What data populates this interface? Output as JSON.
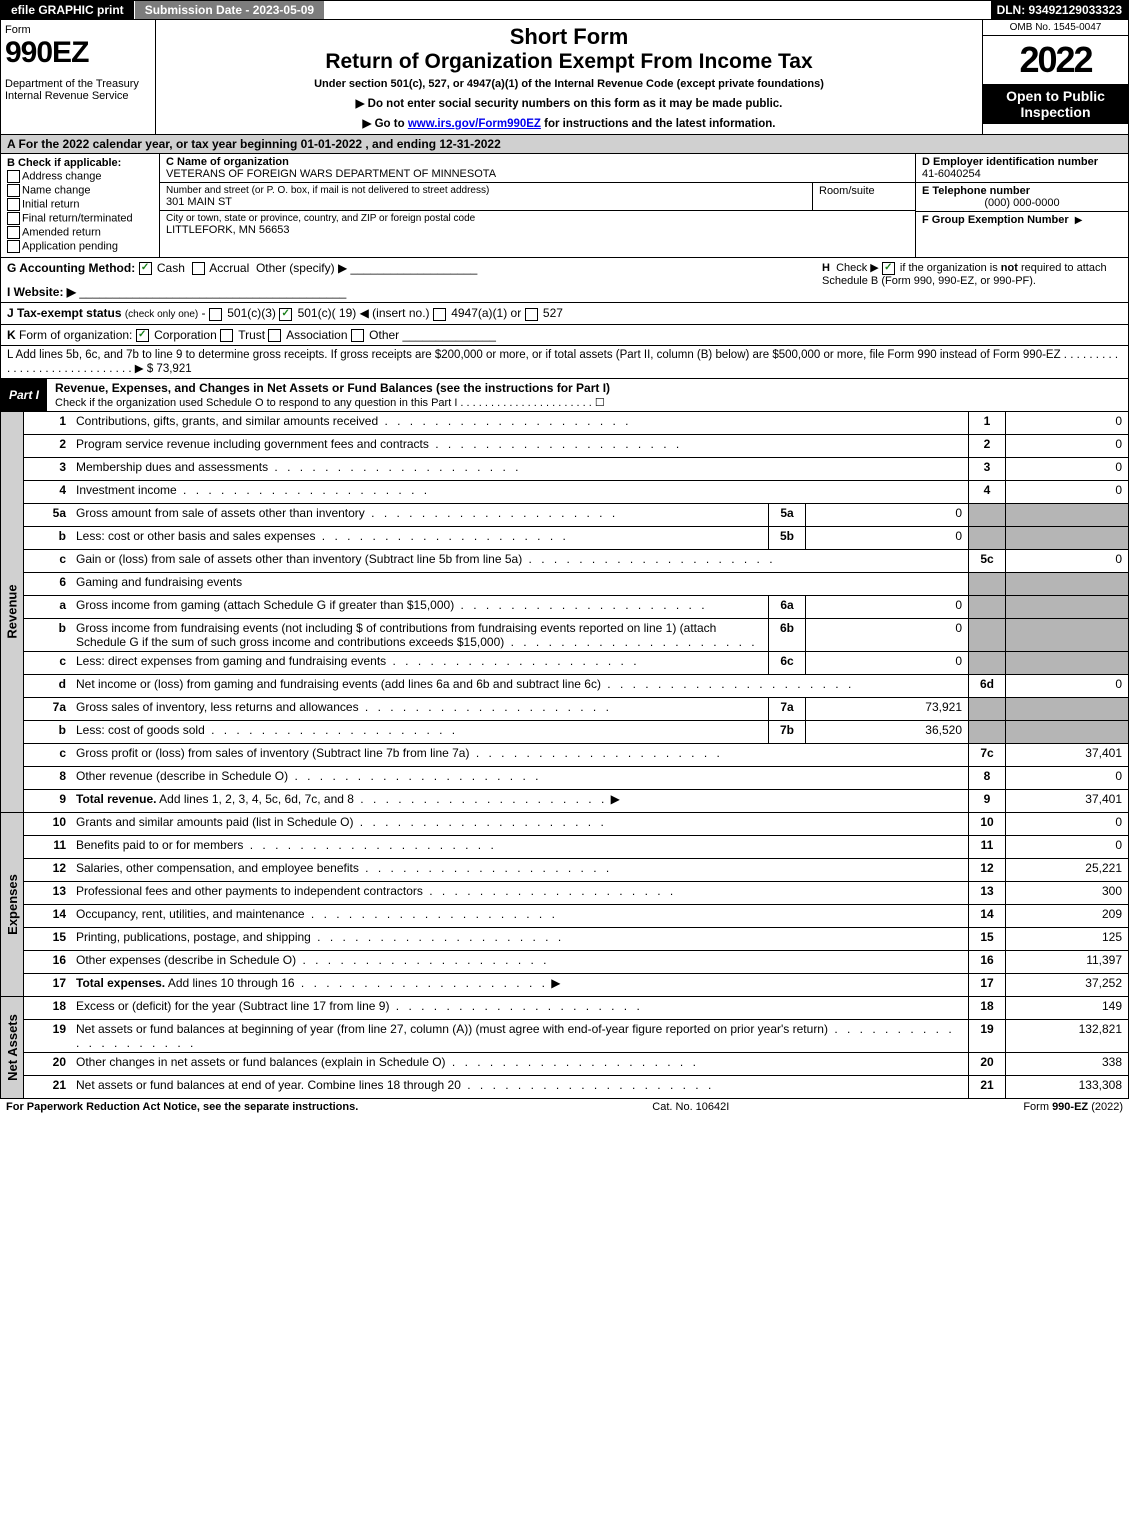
{
  "topbar": {
    "efile": "efile GRAPHIC print",
    "submission": "Submission Date - 2023-05-09",
    "dln": "DLN: 93492129033323"
  },
  "header": {
    "form_word": "Form",
    "form_num": "990EZ",
    "dept": "Department of the Treasury\nInternal Revenue Service",
    "short_form": "Short Form",
    "title": "Return of Organization Exempt From Income Tax",
    "subtitle": "Under section 501(c), 527, or 4947(a)(1) of the Internal Revenue Code (except private foundations)",
    "note1": "Do not enter social security numbers on this form as it may be made public.",
    "note2": "Go to www.irs.gov/Form990EZ for instructions and the latest information.",
    "omb": "OMB No. 1545-0047",
    "year": "2022",
    "open": "Open to Public Inspection"
  },
  "rowA": "A  For the 2022 calendar year, or tax year beginning 01-01-2022 , and ending 12-31-2022",
  "boxB": {
    "title": "B  Check if applicable:",
    "items": [
      "Address change",
      "Name change",
      "Initial return",
      "Final return/terminated",
      "Amended return",
      "Application pending"
    ]
  },
  "boxC": {
    "label_name": "C Name of organization",
    "name": "VETERANS OF FOREIGN WARS DEPARTMENT OF MINNESOTA",
    "label_street": "Number and street (or P. O. box, if mail is not delivered to street address)",
    "room": "Room/suite",
    "street": "301 MAIN ST",
    "label_city": "City or town, state or province, country, and ZIP or foreign postal code",
    "city": "LITTLEFORK, MN  56653"
  },
  "boxD": {
    "label": "D Employer identification number",
    "ein": "41-6040254",
    "label_e": "E Telephone number",
    "phone": "(000) 000-0000",
    "label_f": "F Group Exemption Number"
  },
  "rowG": {
    "label": "G Accounting Method:",
    "cash": "Cash",
    "accrual": "Accrual",
    "other": "Other (specify)"
  },
  "rowH": "H  Check ▶  if the organization is not required to attach Schedule B (Form 990, 990-EZ, or 990-PF).",
  "rowI": "I Website: ▶",
  "rowJ": "J Tax-exempt status (check only one) -  501(c)(3)  501(c)( 19) ◀ (insert no.)  4947(a)(1) or  527",
  "rowK": "K Form of organization:  Corporation  Trust  Association  Other",
  "rowL": "L Add lines 5b, 6c, and 7b to line 9 to determine gross receipts. If gross receipts are $200,000 or more, or if total assets (Part II, column (B) below) are $500,000 or more, file Form 990 instead of Form 990-EZ . . . . . . . . . . . . . . . . . . . . . . . . . . . . . ▶ $ 73,921",
  "part1": {
    "tag": "Part I",
    "title": "Revenue, Expenses, and Changes in Net Assets or Fund Balances (see the instructions for Part I)",
    "check": "Check if the organization used Schedule O to respond to any question in this Part I . . . . . . . . . . . . . . . . . . . . . . ☐"
  },
  "sidelabels": {
    "revenue": "Revenue",
    "expenses": "Expenses",
    "netassets": "Net Assets"
  },
  "lines": {
    "l1": {
      "n": "1",
      "d": "Contributions, gifts, grants, and similar amounts received",
      "rn": "1",
      "rv": "0"
    },
    "l2": {
      "n": "2",
      "d": "Program service revenue including government fees and contracts",
      "rn": "2",
      "rv": "0"
    },
    "l3": {
      "n": "3",
      "d": "Membership dues and assessments",
      "rn": "3",
      "rv": "0"
    },
    "l4": {
      "n": "4",
      "d": "Investment income",
      "rn": "4",
      "rv": "0"
    },
    "l5a": {
      "n": "5a",
      "d": "Gross amount from sale of assets other than inventory",
      "sn": "5a",
      "sv": "0"
    },
    "l5b": {
      "n": "b",
      "d": "Less: cost or other basis and sales expenses",
      "sn": "5b",
      "sv": "0"
    },
    "l5c": {
      "n": "c",
      "d": "Gain or (loss) from sale of assets other than inventory (Subtract line 5b from line 5a)",
      "rn": "5c",
      "rv": "0"
    },
    "l6": {
      "n": "6",
      "d": "Gaming and fundraising events"
    },
    "l6a": {
      "n": "a",
      "d": "Gross income from gaming (attach Schedule G if greater than $15,000)",
      "sn": "6a",
      "sv": "0"
    },
    "l6b": {
      "n": "b",
      "d": "Gross income from fundraising events (not including $               of contributions from fundraising events reported on line 1) (attach Schedule G if the sum of such gross income and contributions exceeds $15,000)",
      "sn": "6b",
      "sv": "0"
    },
    "l6c": {
      "n": "c",
      "d": "Less: direct expenses from gaming and fundraising events",
      "sn": "6c",
      "sv": "0"
    },
    "l6d": {
      "n": "d",
      "d": "Net income or (loss) from gaming and fundraising events (add lines 6a and 6b and subtract line 6c)",
      "rn": "6d",
      "rv": "0"
    },
    "l7a": {
      "n": "7a",
      "d": "Gross sales of inventory, less returns and allowances",
      "sn": "7a",
      "sv": "73,921"
    },
    "l7b": {
      "n": "b",
      "d": "Less: cost of goods sold",
      "sn": "7b",
      "sv": "36,520"
    },
    "l7c": {
      "n": "c",
      "d": "Gross profit or (loss) from sales of inventory (Subtract line 7b from line 7a)",
      "rn": "7c",
      "rv": "37,401"
    },
    "l8": {
      "n": "8",
      "d": "Other revenue (describe in Schedule O)",
      "rn": "8",
      "rv": "0"
    },
    "l9": {
      "n": "9",
      "d": "Total revenue. Add lines 1, 2, 3, 4, 5c, 6d, 7c, and 8",
      "rn": "9",
      "rv": "37,401"
    },
    "l10": {
      "n": "10",
      "d": "Grants and similar amounts paid (list in Schedule O)",
      "rn": "10",
      "rv": "0"
    },
    "l11": {
      "n": "11",
      "d": "Benefits paid to or for members",
      "rn": "11",
      "rv": "0"
    },
    "l12": {
      "n": "12",
      "d": "Salaries, other compensation, and employee benefits",
      "rn": "12",
      "rv": "25,221"
    },
    "l13": {
      "n": "13",
      "d": "Professional fees and other payments to independent contractors",
      "rn": "13",
      "rv": "300"
    },
    "l14": {
      "n": "14",
      "d": "Occupancy, rent, utilities, and maintenance",
      "rn": "14",
      "rv": "209"
    },
    "l15": {
      "n": "15",
      "d": "Printing, publications, postage, and shipping",
      "rn": "15",
      "rv": "125"
    },
    "l16": {
      "n": "16",
      "d": "Other expenses (describe in Schedule O)",
      "rn": "16",
      "rv": "11,397"
    },
    "l17": {
      "n": "17",
      "d": "Total expenses. Add lines 10 through 16",
      "rn": "17",
      "rv": "37,252"
    },
    "l18": {
      "n": "18",
      "d": "Excess or (deficit) for the year (Subtract line 17 from line 9)",
      "rn": "18",
      "rv": "149"
    },
    "l19": {
      "n": "19",
      "d": "Net assets or fund balances at beginning of year (from line 27, column (A)) (must agree with end-of-year figure reported on prior year's return)",
      "rn": "19",
      "rv": "132,821"
    },
    "l20": {
      "n": "20",
      "d": "Other changes in net assets or fund balances (explain in Schedule O)",
      "rn": "20",
      "rv": "338"
    },
    "l21": {
      "n": "21",
      "d": "Net assets or fund balances at end of year. Combine lines 18 through 20",
      "rn": "21",
      "rv": "133,308"
    }
  },
  "footer": {
    "left": "For Paperwork Reduction Act Notice, see the separate instructions.",
    "mid": "Cat. No. 10642I",
    "right": "Form 990-EZ (2022)"
  },
  "colors": {
    "shade": "#b5b5b5",
    "header_shade": "#d0d0d0"
  }
}
